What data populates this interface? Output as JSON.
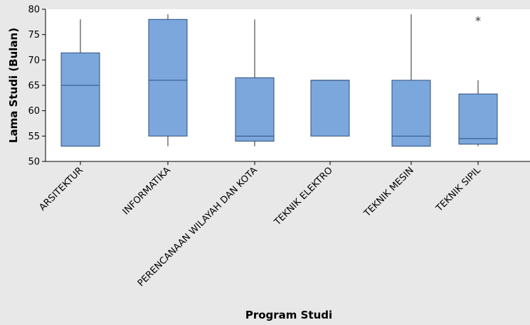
{
  "chart_data": {
    "type": "boxplot",
    "title": "",
    "xlabel": "Program Studi",
    "ylabel": "Lama Studi (Bulan)",
    "ylim": [
      50,
      80
    ],
    "yticks": [
      50,
      55,
      60,
      65,
      70,
      75,
      80
    ],
    "grid": false,
    "legend": "none",
    "colors": {
      "box_fill": "#7ba7dc",
      "box_stroke": "#2f4f7f",
      "plot_bg": "#ffffff",
      "figure_bg": "#e8e8e8"
    },
    "categories": [
      "ARSITEKTUR",
      "INFORMATIKA",
      "PERENCANAAN WILAYAH DAN KOTA",
      "TEKNIK ELEKTRO",
      "TEKNIK MESIN",
      "TEKNIK SIPIL"
    ],
    "boxes": [
      {
        "category": "ARSITEKTUR",
        "whisker_low": 53,
        "q1": 53,
        "median": 65,
        "q3": 71.4,
        "whisker_high": 78,
        "outliers": []
      },
      {
        "category": "INFORMATIKA",
        "whisker_low": 53,
        "q1": 55,
        "median": 66,
        "q3": 78,
        "whisker_high": 79,
        "outliers": []
      },
      {
        "category": "PERENCANAAN WILAYAH DAN KOTA",
        "whisker_low": 53,
        "q1": 54,
        "median": 55,
        "q3": 66.5,
        "whisker_high": 78,
        "outliers": []
      },
      {
        "category": "TEKNIK ELEKTRO",
        "whisker_low": 55,
        "q1": 55,
        "median": 66,
        "q3": 66,
        "whisker_high": 66,
        "outliers": []
      },
      {
        "category": "TEKNIK MESIN",
        "whisker_low": 53,
        "q1": 53,
        "median": 55,
        "q3": 66,
        "whisker_high": 79,
        "outliers": []
      },
      {
        "category": "TEKNIK SIPIL",
        "whisker_low": 53,
        "q1": 53.4,
        "median": 54.5,
        "q3": 63.3,
        "whisker_high": 66,
        "outliers": [
          78
        ]
      }
    ]
  }
}
